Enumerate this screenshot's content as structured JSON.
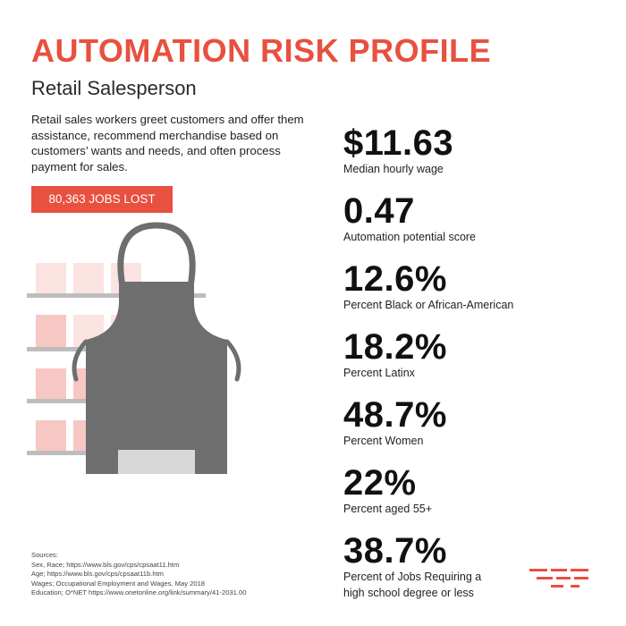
{
  "header": {
    "title": "AUTOMATION RISK PROFILE",
    "subtitle": "Retail Salesperson"
  },
  "description": "Retail sales workers greet customers and offer them assistance, recommend merchandise based on customers’ wants and needs, and often process payment for sales.",
  "jobs_badge": "80,363 JOBS LOST",
  "stats": [
    {
      "value": "$11.63",
      "label": "Median hourly wage"
    },
    {
      "value": "0.47",
      "label": "Automation potential score"
    },
    {
      "value": "12.6%",
      "label": "Percent Black or African-American"
    },
    {
      "value": "18.2%",
      "label": "Percent Latinx"
    },
    {
      "value": "48.7%",
      "label": "Percent Women"
    },
    {
      "value": "22%",
      "label": "Percent aged 55+"
    },
    {
      "value": "38.7%",
      "label": "Percent of Jobs Requiring a",
      "label2": "high school degree or less"
    }
  ],
  "sources": {
    "heading": "Sources:",
    "lines": [
      "Sex, Race; https://www.bls.gov/cps/cpsaat11.htm",
      "Age; https://www.bls.gov/cps/cpsaat11b.htm",
      "Wages; Occupational Employment and Wages, May 2018",
      "Education; O*NET https://www.onetonline.org/link/summary/41-2031.00"
    ]
  },
  "colors": {
    "accent": "#e8503f",
    "apron": "#6e6e6e",
    "pocket": "#d8d8d8",
    "shelf": "#bdbdbd"
  },
  "icons": {
    "illustration": "apron-with-shelves-illustration",
    "logo": "brand-logo-icon"
  }
}
